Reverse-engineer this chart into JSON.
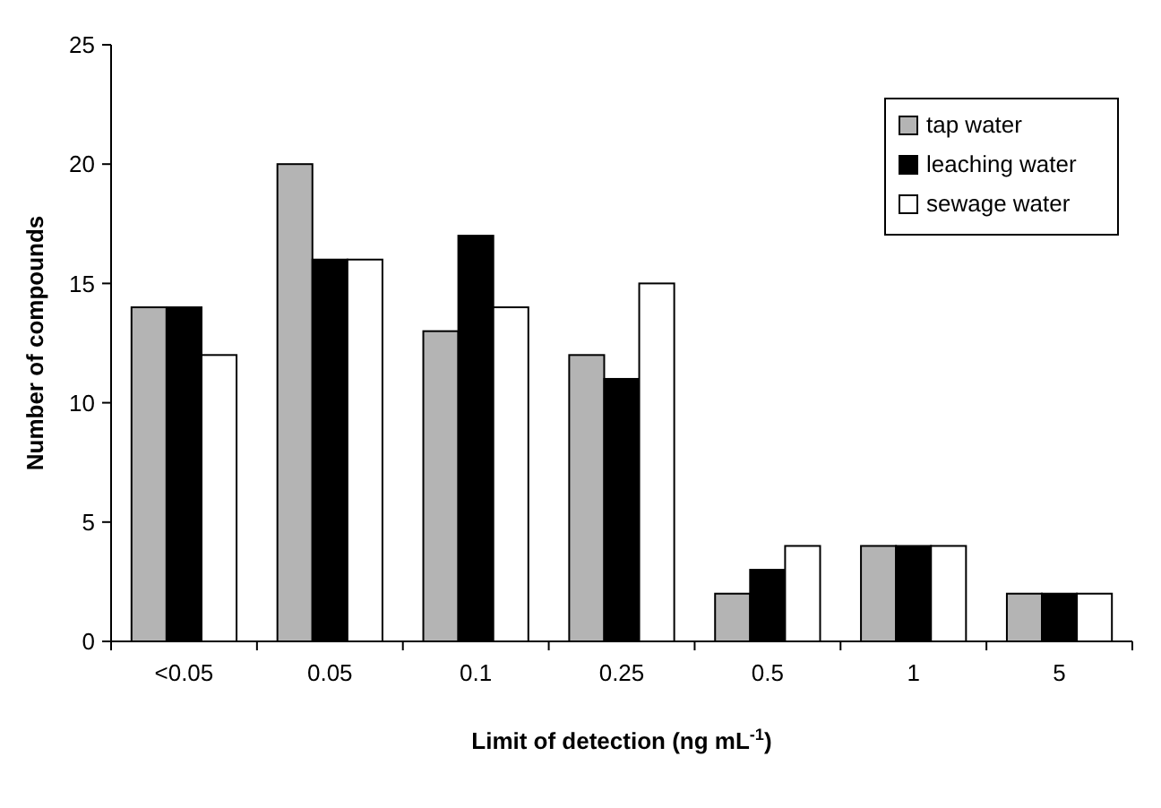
{
  "chart_data": {
    "type": "bar",
    "xlabel": "Limit of detection (ng mL$^{-1}$)",
    "ylabel": "Number of compounds",
    "categories": [
      "<0.05",
      "0.05",
      "0.1",
      "0.25",
      "0.5",
      "1",
      "5"
    ],
    "series": [
      {
        "name": "tap water",
        "color": "#b4b4b4",
        "values": [
          14,
          20,
          13,
          12,
          2,
          4,
          2
        ]
      },
      {
        "name": "leaching water",
        "color": "#000000",
        "values": [
          14,
          16,
          17,
          11,
          3,
          4,
          2
        ]
      },
      {
        "name": "sewage water",
        "color": "#ffffff",
        "values": [
          12,
          16,
          14,
          15,
          4,
          4,
          2
        ]
      }
    ],
    "ylim": [
      0,
      25
    ],
    "yticks": [
      0,
      5,
      10,
      15,
      20,
      25
    ],
    "legend": "top right"
  }
}
